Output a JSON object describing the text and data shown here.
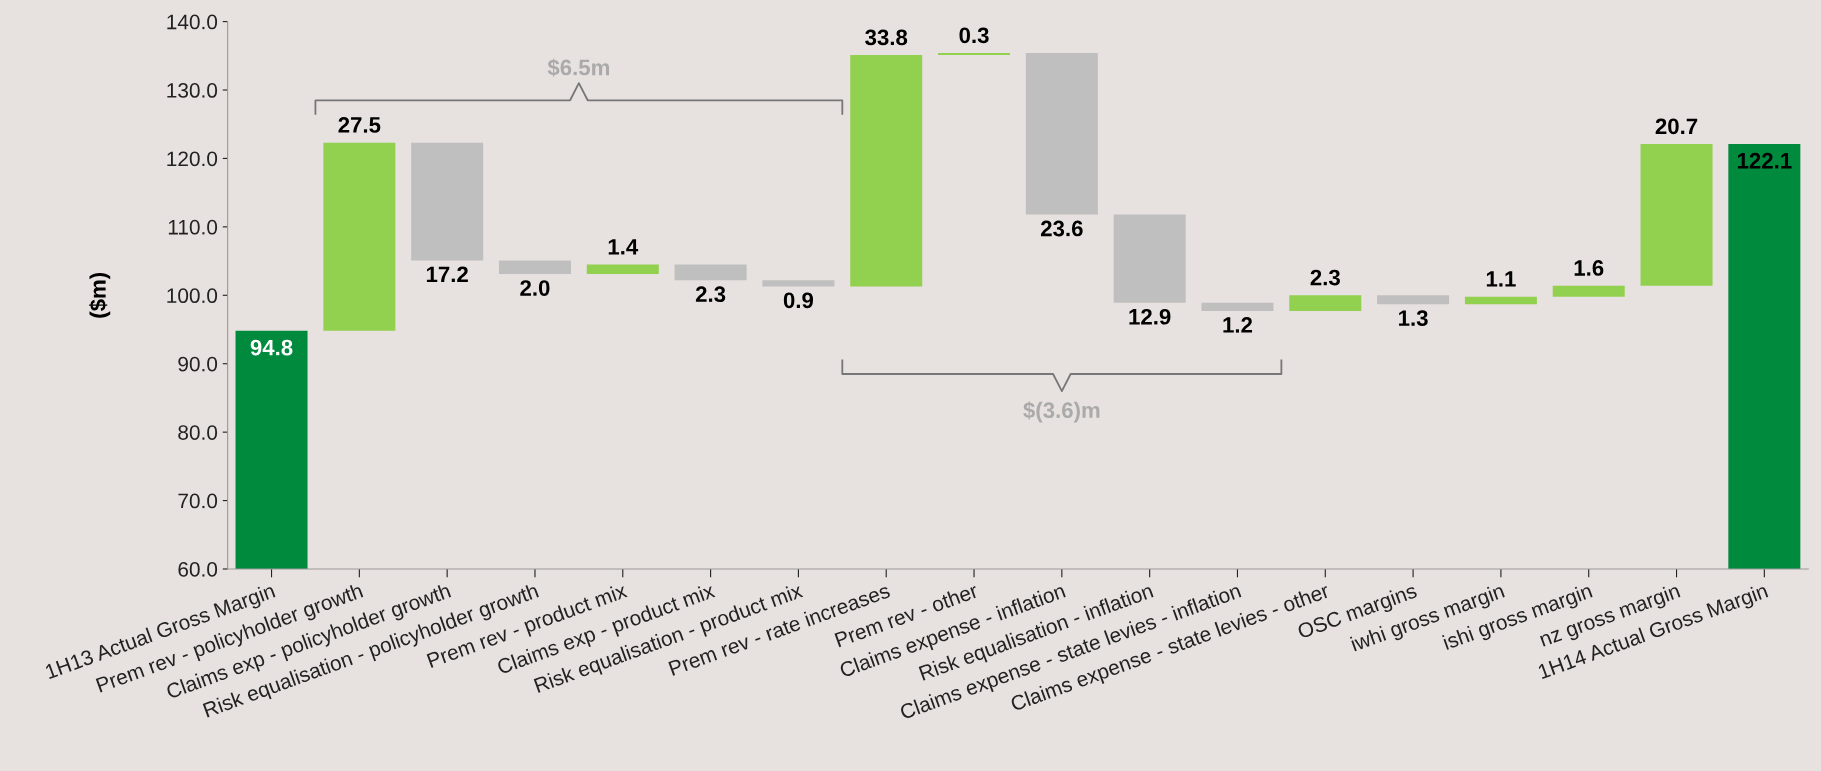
{
  "chart_data": {
    "type": "bar",
    "ylabel": "($m)",
    "categories": [
      "1H13 Actual Gross Margin",
      "Prem rev - policyholder growth",
      "Claims exp - policyholder growth",
      "Risk equalisation - policyholder growth",
      "Prem rev - product mix",
      "Claims exp - product mix",
      "Risk equalisation - product mix",
      "Prem rev - rate increases",
      "Prem rev - other",
      "Claims expense - inflation",
      "Risk equalisation - inflation",
      "Claims expense - state levies - inflation",
      "Claims expense - state levies - other",
      "OSC margins",
      "iwhi gross margin",
      "ishi gross margin",
      "nz gross margin",
      "1H14 Actual Gross Margin"
    ],
    "values": [
      94.8,
      27.5,
      17.2,
      2.0,
      1.4,
      2.3,
      0.9,
      33.8,
      0.3,
      23.6,
      12.9,
      1.2,
      2.3,
      1.3,
      1.1,
      1.6,
      20.7,
      122.1
    ],
    "base": [
      0,
      94.8,
      105.1,
      103.1,
      103.1,
      102.2,
      101.3,
      101.3,
      135.1,
      111.8,
      98.9,
      97.7,
      97.7,
      98.7,
      98.7,
      99.8,
      101.4,
      0
    ],
    "colors": [
      "#008a3e",
      "#92d050",
      "#bfbfbf",
      "#bfbfbf",
      "#92d050",
      "#bfbfbf",
      "#bfbfbf",
      "#92d050",
      "#92d050",
      "#bfbfbf",
      "#bfbfbf",
      "#bfbfbf",
      "#92d050",
      "#bfbfbf",
      "#92d050",
      "#92d050",
      "#92d050",
      "#008a3e"
    ],
    "value_labels": [
      "94.8",
      "27.5",
      "17.2",
      "2.0",
      "1.4",
      "2.3",
      "0.9",
      "33.8",
      "0.3",
      "23.6",
      "12.9",
      "1.2",
      "2.3",
      "1.3",
      "1.1",
      "1.6",
      "20.7",
      "122.1"
    ],
    "ylim": [
      60,
      140
    ],
    "yticks": [
      {
        "value": 60,
        "label": "60.0"
      },
      {
        "value": 70,
        "label": "70.0"
      },
      {
        "value": 80,
        "label": "80.0"
      },
      {
        "value": 90,
        "label": "90.0"
      },
      {
        "value": 100,
        "label": "100.0"
      },
      {
        "value": 110,
        "label": "110.0"
      },
      {
        "value": 120,
        "label": "120.0"
      },
      {
        "value": 130,
        "label": "130.0"
      },
      {
        "value": 140,
        "label": "140.0"
      }
    ],
    "grid": false,
    "legend": false,
    "annotations": [
      "$6.5m",
      "$(3.6)m"
    ]
  }
}
